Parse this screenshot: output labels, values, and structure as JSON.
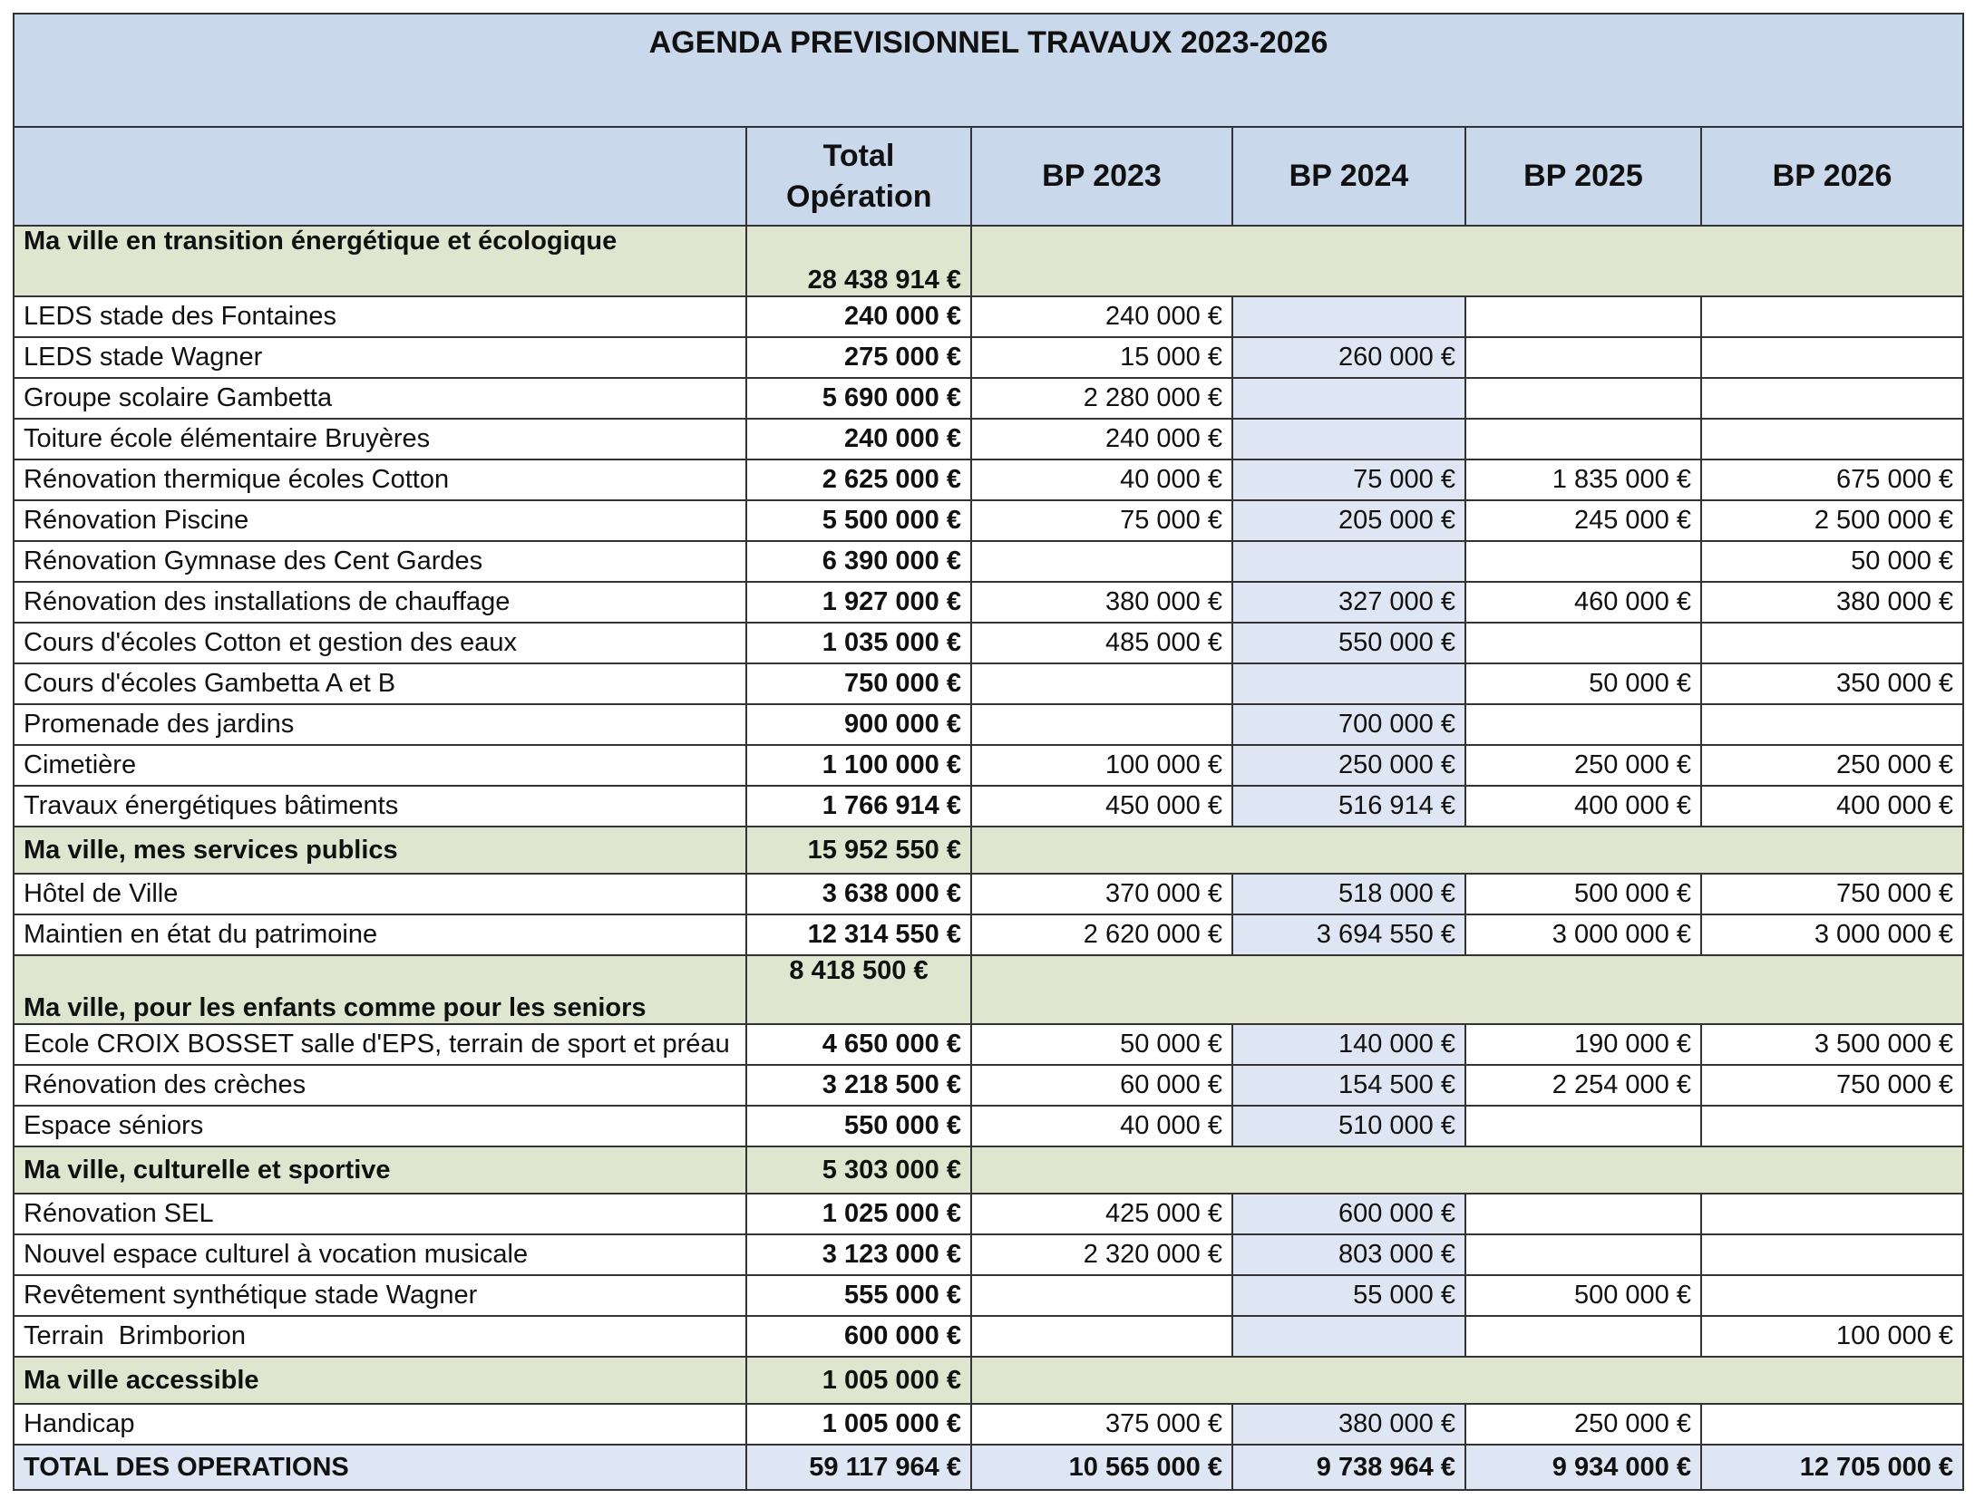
{
  "title": "AGENDA PREVISIONNEL TRAVAUX 2023-2026",
  "columns": [
    "Total Opération",
    "BP 2023",
    "BP 2024",
    "BP 2025",
    "BP 2026"
  ],
  "sections": [
    {
      "title": "Ma ville en transition énergétique et écologique",
      "total": "28 438 914 €",
      "rows": [
        {
          "label": "LEDS stade des Fontaines",
          "total": "240 000 €",
          "bp": [
            "240 000 €",
            null,
            null,
            null
          ]
        },
        {
          "label": "LEDS stade Wagner",
          "total": "275 000 €",
          "bp": [
            "15 000 €",
            "260 000 €",
            null,
            null
          ]
        },
        {
          "label": "Groupe scolaire Gambetta",
          "total": "5 690 000 €",
          "bp": [
            "2 280 000 €",
            null,
            null,
            null
          ]
        },
        {
          "label": "Toiture école élémentaire Bruyères",
          "total": "240 000 €",
          "bp": [
            "240 000 €",
            null,
            null,
            null
          ]
        },
        {
          "label": "Rénovation thermique écoles Cotton",
          "total": "2 625 000 €",
          "bp": [
            "40 000 €",
            "75 000 €",
            "1 835 000 €",
            "675 000 €"
          ]
        },
        {
          "label": "Rénovation Piscine",
          "total": "5 500 000 €",
          "bp": [
            "75 000 €",
            "205 000 €",
            "245 000 €",
            "2 500 000 €"
          ]
        },
        {
          "label": "Rénovation Gymnase des Cent Gardes",
          "total": "6 390 000 €",
          "bp": [
            null,
            null,
            null,
            "50 000 €"
          ]
        },
        {
          "label": "Rénovation des installations de chauffage",
          "total": "1 927 000 €",
          "bp": [
            "380 000 €",
            "327 000 €",
            "460 000 €",
            "380 000 €"
          ]
        },
        {
          "label": "Cours d'écoles Cotton et gestion des eaux",
          "total": "1 035 000 €",
          "bp": [
            "485 000 €",
            "550 000 €",
            null,
            null
          ]
        },
        {
          "label": "Cours d'écoles Gambetta A et B",
          "total": "750 000 €",
          "bp": [
            null,
            null,
            "50 000 €",
            "350 000 €"
          ]
        },
        {
          "label": "Promenade des jardins",
          "total": "900 000 €",
          "bp": [
            null,
            "700 000 €",
            null,
            null
          ]
        },
        {
          "label": "Cimetière",
          "total": "1 100 000 €",
          "bp": [
            "100 000 €",
            "250 000 €",
            "250 000 €",
            "250 000 €"
          ]
        },
        {
          "label": "Travaux énergétiques bâtiments",
          "total": "1 766 914 €",
          "bp": [
            "450 000 €",
            "516 914 €",
            "400 000 €",
            "400 000 €"
          ]
        }
      ]
    },
    {
      "title": "Ma ville, mes services publics",
      "total": "15 952 550 €",
      "rows": [
        {
          "label": "Hôtel de Ville",
          "total": "3 638 000 €",
          "bp": [
            "370 000 €",
            "518 000 €",
            "500 000 €",
            "750 000 €"
          ]
        },
        {
          "label": "Maintien en état du patrimoine",
          "total": "12 314 550 €",
          "bp": [
            "2 620 000 €",
            "3 694 550 €",
            "3 000 000 €",
            "3 000 000 €"
          ]
        }
      ]
    },
    {
      "title": "Ma ville, pour les enfants comme pour les seniors",
      "total": "8 418 500 €",
      "rows": [
        {
          "label": "Ecole CROIX BOSSET salle d'EPS, terrain de sport et préau",
          "total": "4 650 000 €",
          "bp": [
            "50 000 €",
            "140 000 €",
            "190 000 €",
            "3 500 000 €"
          ]
        },
        {
          "label": "Rénovation des crèches",
          "total": "3 218 500 €",
          "bp": [
            "60 000 €",
            "154 500 €",
            "2 254 000 €",
            "750 000 €"
          ]
        },
        {
          "label": "Espace séniors",
          "total": "550 000 €",
          "bp": [
            "40 000 €",
            "510 000 €",
            null,
            null
          ]
        }
      ]
    },
    {
      "title": "Ma ville, culturelle et sportive",
      "total": "5 303 000 €",
      "rows": [
        {
          "label": "Rénovation SEL",
          "total": "1 025 000 €",
          "bp": [
            "425 000 €",
            "600 000 €",
            null,
            null
          ]
        },
        {
          "label": "Nouvel espace culturel à vocation musicale",
          "total": "3 123 000 €",
          "bp": [
            "2 320 000 €",
            "803 000 €",
            null,
            null
          ]
        },
        {
          "label": "Revêtement synthétique stade Wagner",
          "total": "555 000 €",
          "bp": [
            null,
            "55 000 €",
            "500 000 €",
            null
          ]
        },
        {
          "label": "Terrain  Brimborion",
          "total": "600 000 €",
          "bp": [
            null,
            null,
            null,
            "100 000 €"
          ]
        }
      ]
    },
    {
      "title": "Ma ville accessible",
      "total": "1 005 000 €",
      "rows": [
        {
          "label": "Handicap",
          "total": "1 005 000 €",
          "bp": [
            "375 000 €",
            "380 000 €",
            "250 000 €",
            null
          ]
        }
      ]
    }
  ],
  "grand_total": {
    "label": "TOTAL DES OPERATIONS",
    "total": "59 117 964 €",
    "bp": [
      "10 565 000 €",
      "9 738 964 €",
      "9 934 000 €",
      "12 705 000 €"
    ]
  }
}
